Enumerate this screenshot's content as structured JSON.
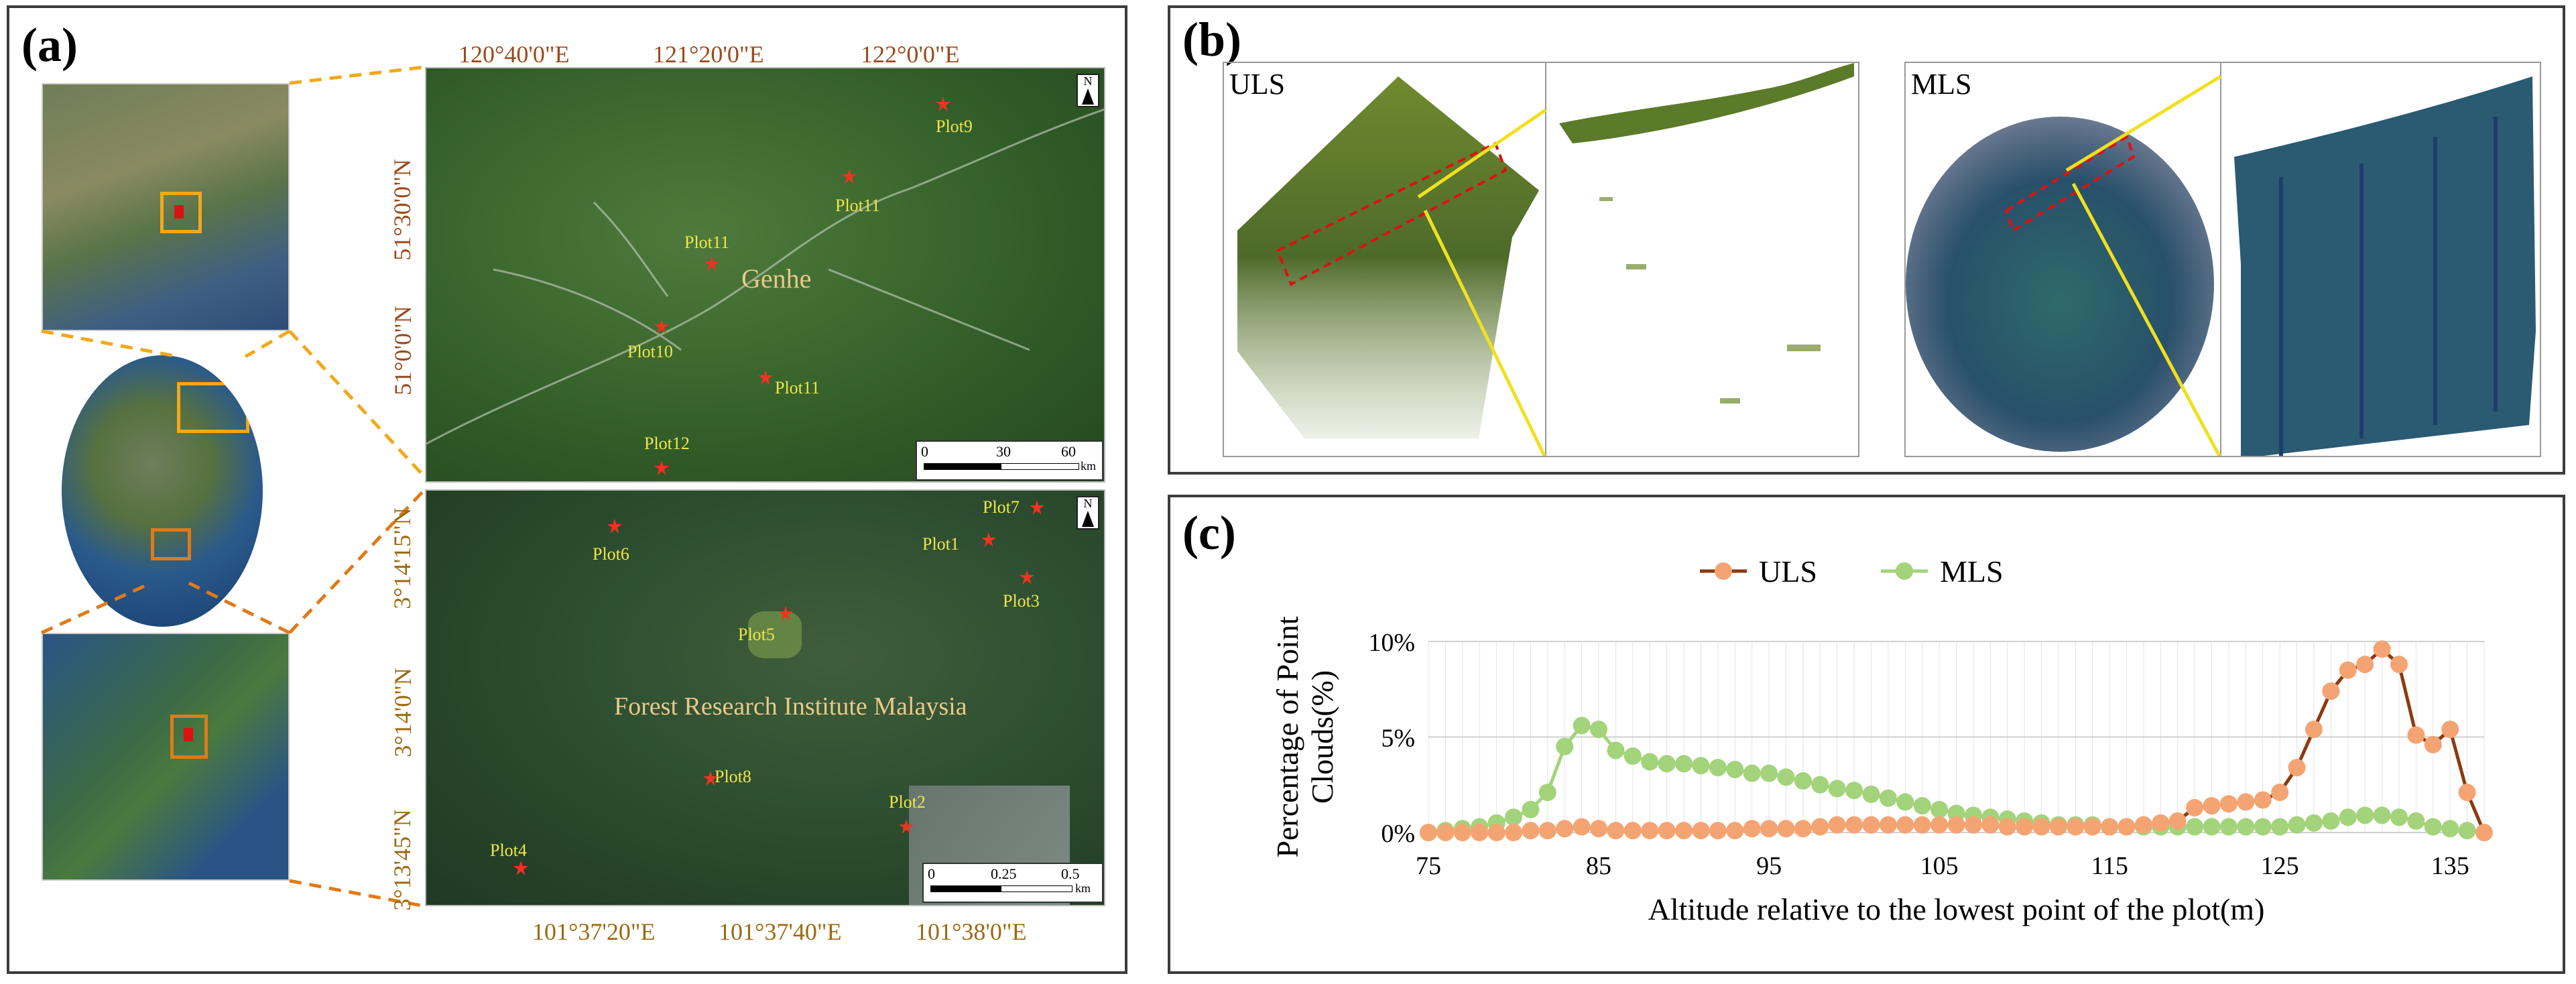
{
  "panels": {
    "a": "(a)",
    "b": "(b)",
    "c": "(c)"
  },
  "map_top": {
    "lon_ticks": [
      "120°40'0\"E",
      "121°20'0\"E",
      "122°0'0\"E"
    ],
    "lat_ticks": [
      "51°30'0\"N",
      "51°0'0\"N"
    ],
    "place": "Genhe",
    "plots": [
      "Plot9",
      "Plot11",
      "Plot11",
      "Plot10",
      "Plot11",
      "Plot12"
    ],
    "scale": {
      "s0": "0",
      "s1": "30",
      "s2": "60",
      "unit": "km"
    },
    "north": "N"
  },
  "map_bottom": {
    "lon_ticks": [
      "101°37'20\"E",
      "101°37'40\"E",
      "101°38'0\"E"
    ],
    "lat_ticks": [
      "3°14'15\"N",
      "3°14'0\"N",
      "3°13'45\"N"
    ],
    "place": "Forest Research Institute Malaysia",
    "plots": [
      "Plot7",
      "Plot6",
      "Plot1",
      "Plot3",
      "Plot5",
      "Plot8",
      "Plot2",
      "Plot4"
    ],
    "scale": {
      "s0": "0",
      "s1": "0.25",
      "s2": "0.5",
      "unit": "km"
    },
    "north": "N"
  },
  "lidar": {
    "uls_label": "ULS",
    "mls_label": "MLS"
  },
  "colors": {
    "uls": "#f4a473",
    "uls_line": "#8b3a10",
    "mls": "#a3d37a",
    "mls_line": "#a3d37a",
    "inset_box": "#f2a81a",
    "dash": "#e07a1a"
  },
  "chart_data": {
    "type": "line",
    "title": "",
    "xlabel": "Altitude relative to the lowest point of the plot(m)",
    "ylabel": "Percentage of Point Clouds(%)",
    "xlim": [
      75,
      137
    ],
    "ylim": [
      0,
      10
    ],
    "x_ticks": [
      "75",
      "85",
      "95",
      "105",
      "115",
      "125",
      "135"
    ],
    "y_ticks": [
      "0%",
      "5%",
      "10%"
    ],
    "legend_position": "top",
    "grid": true,
    "series": [
      {
        "name": "ULS",
        "x": [
          75,
          76,
          77,
          78,
          79,
          80,
          81,
          82,
          83,
          84,
          85,
          86,
          87,
          88,
          89,
          90,
          91,
          92,
          93,
          94,
          95,
          96,
          97,
          98,
          99,
          100,
          101,
          102,
          103,
          104,
          105,
          106,
          107,
          108,
          109,
          110,
          111,
          112,
          113,
          114,
          115,
          116,
          117,
          118,
          119,
          120,
          121,
          122,
          123,
          124,
          125,
          126,
          127,
          128,
          129,
          130,
          131,
          132,
          133,
          134,
          135,
          136,
          137
        ],
        "values": [
          0,
          0,
          0,
          0,
          0,
          0,
          0.1,
          0.1,
          0.2,
          0.3,
          0.2,
          0.1,
          0.1,
          0.1,
          0.1,
          0.1,
          0.1,
          0.1,
          0.1,
          0.2,
          0.2,
          0.2,
          0.2,
          0.3,
          0.4,
          0.4,
          0.4,
          0.4,
          0.4,
          0.4,
          0.4,
          0.4,
          0.4,
          0.4,
          0.3,
          0.3,
          0.3,
          0.3,
          0.3,
          0.3,
          0.3,
          0.3,
          0.4,
          0.5,
          0.6,
          1.3,
          1.4,
          1.5,
          1.6,
          1.7,
          2.1,
          3.4,
          5.4,
          7.4,
          8.5,
          8.8,
          9.6,
          8.8,
          5.1,
          4.6,
          5.4,
          2.1,
          0
        ]
      },
      {
        "name": "MLS",
        "x": [
          75,
          76,
          77,
          78,
          79,
          80,
          81,
          82,
          83,
          84,
          85,
          86,
          87,
          88,
          89,
          90,
          91,
          92,
          93,
          94,
          95,
          96,
          97,
          98,
          99,
          100,
          101,
          102,
          103,
          104,
          105,
          106,
          107,
          108,
          109,
          110,
          111,
          112,
          113,
          114,
          115,
          116,
          117,
          118,
          119,
          120,
          121,
          122,
          123,
          124,
          125,
          126,
          127,
          128,
          129,
          130,
          131,
          132,
          133,
          134,
          135,
          136,
          137
        ],
        "values": [
          0,
          0.1,
          0.2,
          0.3,
          0.5,
          0.8,
          1.2,
          2.1,
          4.5,
          5.6,
          5.4,
          4.3,
          4.0,
          3.7,
          3.6,
          3.6,
          3.5,
          3.4,
          3.3,
          3.1,
          3.1,
          2.9,
          2.7,
          2.5,
          2.3,
          2.2,
          2.0,
          1.8,
          1.6,
          1.4,
          1.2,
          1.0,
          0.9,
          0.8,
          0.7,
          0.6,
          0.5,
          0.4,
          0.4,
          0.4,
          0.3,
          0.3,
          0.3,
          0.3,
          0.3,
          0.3,
          0.3,
          0.3,
          0.3,
          0.3,
          0.3,
          0.4,
          0.5,
          0.6,
          0.8,
          0.9,
          0.9,
          0.8,
          0.6,
          0.3,
          0.2,
          0.1,
          0
        ]
      }
    ]
  }
}
